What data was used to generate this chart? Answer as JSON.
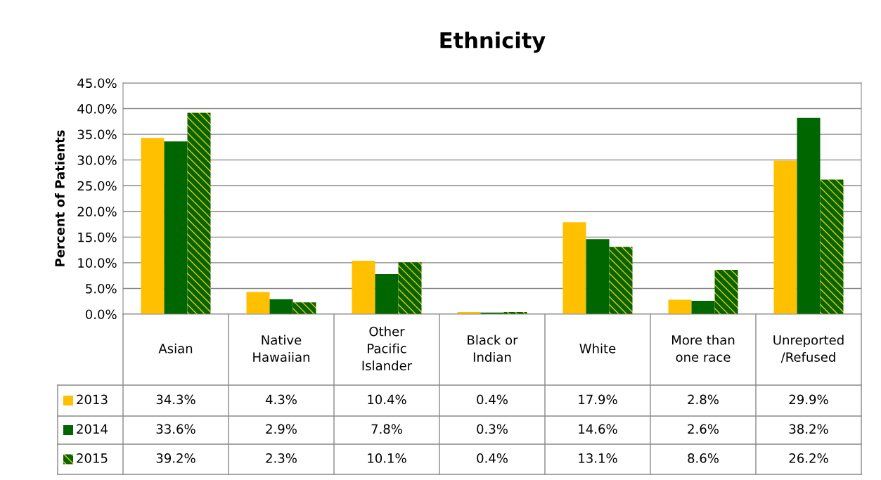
{
  "chart_data": {
    "type": "bar",
    "title": "Ethnicity",
    "ylabel": "Percent of Patients",
    "categories": [
      "Asian",
      "Native\nHawaiian",
      "Other\nPacific\nIslander",
      "Black or\nIndian",
      "White",
      "More than\none race",
      "Unreported\n/Refused"
    ],
    "series": [
      {
        "name": "2013",
        "color": "#ffc000",
        "values": [
          34.3,
          4.3,
          10.4,
          0.4,
          17.9,
          2.8,
          29.9
        ],
        "value_labels": [
          "34.3%",
          "4.3%",
          "10.4%",
          "0.4%",
          "17.9%",
          "2.8%",
          "29.9%"
        ]
      },
      {
        "name": "2014",
        "color": "#006600",
        "values": [
          33.6,
          2.9,
          7.8,
          0.3,
          14.6,
          2.6,
          38.2
        ],
        "value_labels": [
          "33.6%",
          "2.9%",
          "7.8%",
          "0.3%",
          "14.6%",
          "2.6%",
          "38.2%"
        ]
      },
      {
        "name": "2015",
        "color": "#006600",
        "values": [
          39.2,
          2.3,
          10.1,
          0.4,
          13.1,
          8.6,
          26.2
        ],
        "value_labels": [
          "39.2%",
          "2.3%",
          "10.1%",
          "0.4%",
          "13.1%",
          "8.6%",
          "26.2%"
        ]
      }
    ],
    "ylim": [
      0,
      45
    ],
    "yticks": [
      {
        "value": 0,
        "label": "0.0%"
      },
      {
        "value": 5,
        "label": "5.0%"
      },
      {
        "value": 10,
        "label": "10.0%"
      },
      {
        "value": 15,
        "label": "15.0%"
      },
      {
        "value": 20,
        "label": "20.0%"
      },
      {
        "value": 25,
        "label": "25.0%"
      },
      {
        "value": 30,
        "label": "30.0%"
      },
      {
        "value": 35,
        "label": "35.0%"
      },
      {
        "value": 40,
        "label": "40.0%"
      },
      {
        "value": 45,
        "label": "45.0%"
      }
    ],
    "grid": "y",
    "legend": "bottom left"
  }
}
